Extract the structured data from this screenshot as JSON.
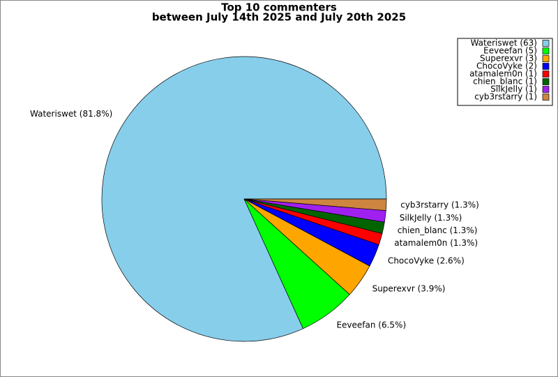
{
  "chart_data": {
    "type": "pie",
    "title": "Top 10 commenters",
    "subtitle": "between July 14th 2025 and July 20th 2025",
    "categories": [
      "Wateriswet",
      "Eeveefan",
      "Superexvr",
      "ChocoVyke",
      "atamalem0n",
      "chien_blanc",
      "SilkJelly",
      "cyb3rstarry"
    ],
    "values": [
      81.8,
      6.5,
      3.9,
      2.6,
      1.3,
      1.3,
      1.3,
      1.3
    ],
    "value_labels": [
      "Wateriswet (81.8%)",
      "Eeveefan (6.5%)",
      "Superexvr (3.9%)",
      "ChocoVyke (2.6%)",
      "atamalem0n (1.3%)",
      "chien_blanc (1.3%)",
      "SilkJelly (1.3%)",
      "cyb3rstarry (1.3%)"
    ],
    "legend_labels": [
      "Wateriswet (63)",
      "Eeveefan (5)",
      "Superexvr (3)",
      "ChocoVyke (2)",
      "atamalem0n (1)",
      "chien_blanc (1)",
      "SilkJelly (1)",
      "cyb3rstarry (1)"
    ],
    "colors": [
      "#87ceeb",
      "#00ff00",
      "#ffa500",
      "#0000ff",
      "#ff0000",
      "#006400",
      "#a020f0",
      "#cd853f"
    ],
    "legend": "upper right"
  }
}
